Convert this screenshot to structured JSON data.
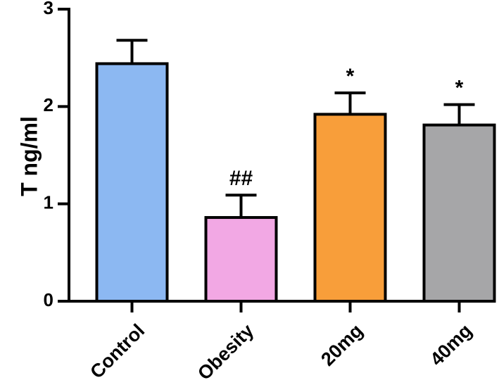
{
  "chart_data": {
    "type": "bar",
    "title": "",
    "xlabel": "",
    "ylabel": "T ng/ml",
    "ylim": [
      0,
      3
    ],
    "yticks": [
      0,
      1,
      2,
      3
    ],
    "ytick_labels": [
      "0",
      "1",
      "2",
      "3"
    ],
    "categories": [
      "Control",
      "Obesity",
      "20mg",
      "40mg"
    ],
    "values": [
      2.44,
      0.86,
      1.92,
      1.81
    ],
    "error_upper": [
      0.24,
      0.23,
      0.22,
      0.21
    ],
    "annotations": [
      "",
      "##",
      "*",
      "*"
    ],
    "bar_colors": [
      "#8cb8f2",
      "#f2a8e4",
      "#f89e3a",
      "#a6a6a8"
    ],
    "grid": false,
    "legend": "none"
  }
}
